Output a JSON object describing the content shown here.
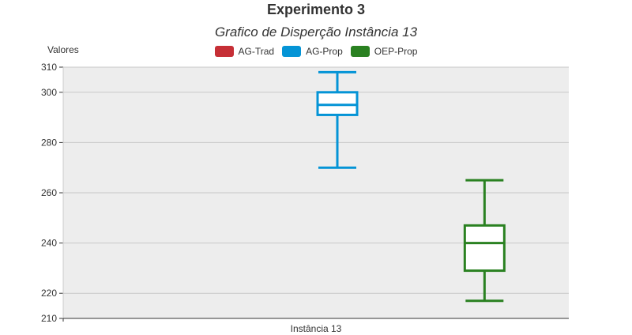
{
  "chart_data": {
    "type": "boxplot",
    "title": "Experimento 3",
    "subtitle": "Grafico de Disperção Instância 13",
    "ylabel": "Valores",
    "xlabel": "",
    "ylim": [
      210,
      310
    ],
    "yticks": [
      210,
      220,
      240,
      260,
      280,
      300,
      310
    ],
    "categories": [
      "Instância 13"
    ],
    "grid": true,
    "background_color": "#ededed",
    "legend_placement": "top-center",
    "series": [
      {
        "name": "AG-Trad",
        "color": "#c62f36",
        "box": null
      },
      {
        "name": "AG-Prop",
        "color": "#0494d6",
        "box": {
          "min": 270,
          "q1": 291,
          "median": 295,
          "q3": 300,
          "max": 308
        }
      },
      {
        "name": "OEP-Prop",
        "color": "#2a8121",
        "box": {
          "min": 217,
          "q1": 229,
          "median": 240,
          "q3": 247,
          "max": 265
        }
      }
    ]
  }
}
